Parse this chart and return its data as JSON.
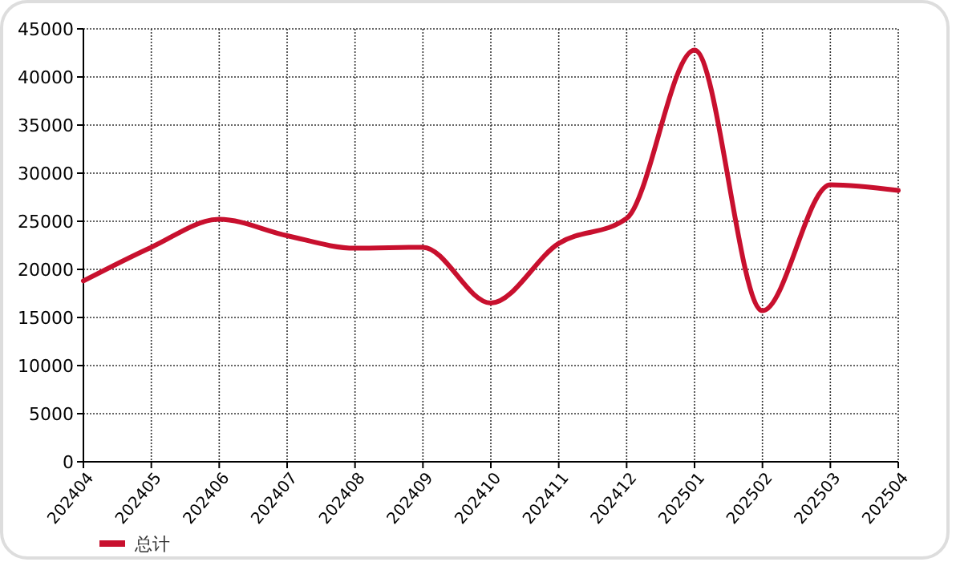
{
  "chart_data": {
    "type": "line",
    "categories": [
      "202404",
      "202405",
      "202406",
      "202407",
      "202408",
      "202409",
      "202410",
      "202411",
      "202412",
      "202501",
      "202502",
      "202503",
      "202504"
    ],
    "series": [
      {
        "name": "总计",
        "color": "#c8102e",
        "values": [
          18800,
          22300,
          25200,
          23500,
          22200,
          22300,
          16500,
          22700,
          25300,
          42800,
          15700,
          28800,
          28200
        ]
      }
    ],
    "ylim": [
      0,
      45000
    ],
    "yticks": [
      0,
      5000,
      10000,
      15000,
      20000,
      25000,
      30000,
      35000,
      40000,
      45000
    ],
    "grid": true,
    "legend": "bottom left",
    "marker": "none",
    "line_style": "solid"
  }
}
